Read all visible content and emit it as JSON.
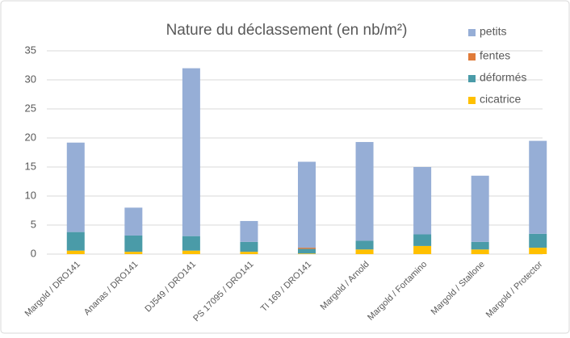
{
  "chart_data": {
    "type": "stacked_bar",
    "title": "Nature du déclassement (en nb/m²)",
    "categories": [
      "Margold / DRO141",
      "Ananas / DRO141",
      "DJ549 / DRO141",
      "PS 17095 / DRO141",
      "TI 169 / DRO141",
      "Margold / Arnold",
      "Margold / Fortamino",
      "Margold / Stallone",
      "Margold / Protector"
    ],
    "series": [
      {
        "name": "cicatrice",
        "color": "#ffc000",
        "values": [
          0.6,
          0.4,
          0.6,
          0.4,
          0.1,
          0.8,
          1.4,
          0.8,
          1.1
        ]
      },
      {
        "name": "déformés",
        "color": "#4a9ba8",
        "values": [
          3.2,
          2.8,
          2.5,
          1.7,
          0.8,
          1.5,
          2.0,
          1.3,
          2.4
        ]
      },
      {
        "name": "fentes",
        "color": "#e07b39",
        "values": [
          0,
          0,
          0,
          0,
          0.2,
          0,
          0,
          0,
          0
        ]
      },
      {
        "name": "petits",
        "color": "#96aed6",
        "values": [
          15.4,
          4.8,
          28.9,
          3.6,
          14.8,
          17.0,
          11.6,
          11.4,
          16.0
        ]
      }
    ],
    "ylim": [
      0,
      35
    ],
    "yticks": [
      0,
      5,
      10,
      15,
      20,
      25,
      30,
      35
    ],
    "grid": true,
    "legend": "top-right"
  }
}
